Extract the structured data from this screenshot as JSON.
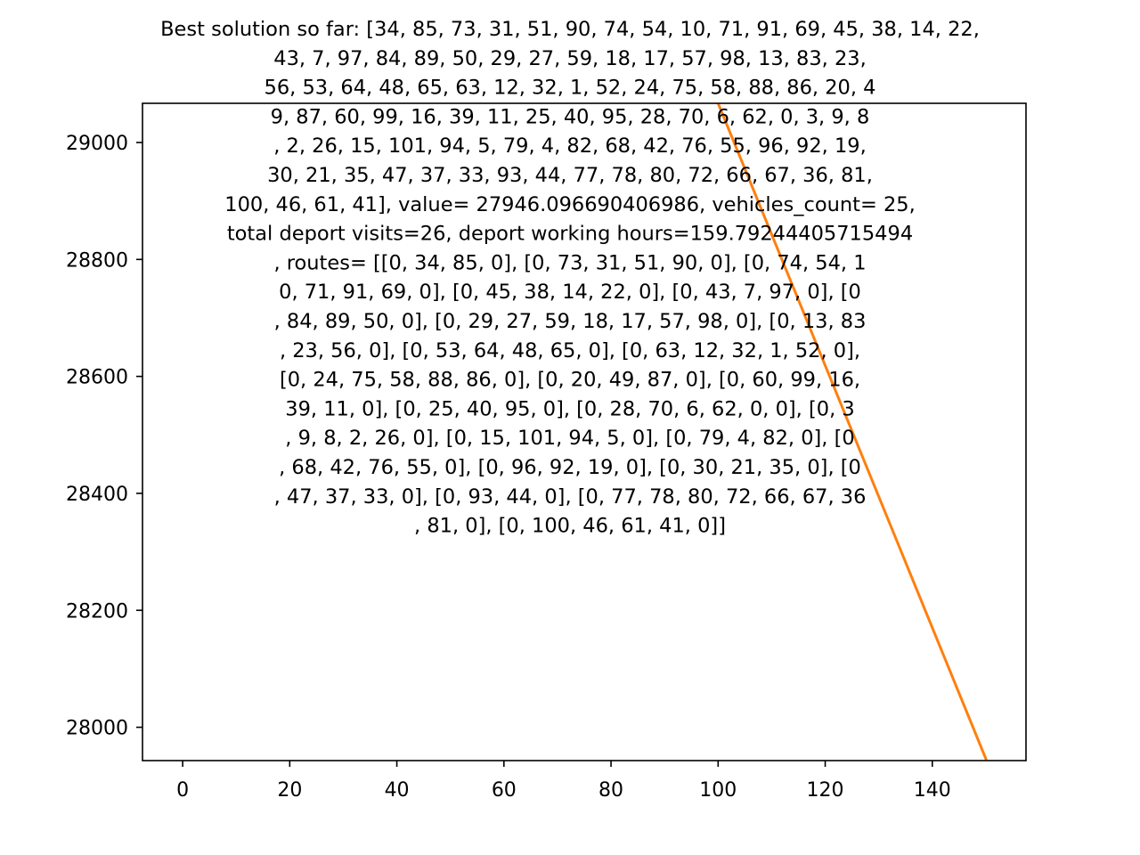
{
  "chart_data": {
    "type": "line",
    "title_lines": [
      "Best solution so far: [34, 85, 73, 31, 51, 90, 74, 54, 10, 71, 91, 69, 45, 38, 14, 22,",
      "43, 7, 97, 84, 89, 50, 29, 27, 59, 18, 17, 57, 98, 13, 83, 23,",
      "56, 53, 64, 48, 65, 63, 12, 32, 1, 52, 24, 75, 58, 88, 86, 20, 4",
      "9, 87, 60, 99, 16, 39, 11, 25, 40, 95, 28, 70, 6, 62, 0, 3, 9, 8",
      ", 2, 26, 15, 101, 94, 5, 79, 4, 82, 68, 42, 76, 55, 96, 92, 19,",
      "30, 21, 35, 47, 37, 33, 93, 44, 77, 78, 80, 72, 66, 67, 36, 81,",
      "100, 46, 61, 41], value= 27946.096690406986, vehicles_count= 25,",
      "total deport visits=26, deport working hours=159.79244405715494",
      ", routes= [[0, 34, 85, 0], [0, 73, 31, 51, 90, 0], [0, 74, 54, 1",
      "0, 71, 91, 69, 0], [0, 45, 38, 14, 22, 0], [0, 43, 7, 97, 0], [0",
      ", 84, 89, 50, 0], [0, 29, 27, 59, 18, 17, 57, 98, 0], [0, 13, 83",
      ", 23, 56, 0], [0, 53, 64, 48, 65, 0], [0, 63, 12, 32, 1, 52, 0],",
      "[0, 24, 75, 58, 88, 86, 0], [0, 20, 49, 87, 0], [0, 60, 99, 16,",
      "39, 11, 0], [0, 25, 40, 95, 0], [0, 28, 70, 6, 62, 0, 0], [0, 3",
      ", 9, 8, 2, 26, 0], [0, 15, 101, 94, 5, 0], [0, 79, 4, 82, 0], [0",
      ", 68, 42, 76, 55, 0], [0, 96, 92, 19, 0], [0, 30, 21, 35, 0], [0",
      ", 47, 37, 33, 0], [0, 93, 44, 0], [0, 77, 78, 80, 72, 66, 67, 36",
      ", 81, 0], [0, 100, 46, 61, 41, 0]]"
    ],
    "xlabel": "",
    "ylabel": "",
    "xlim": [
      -7.5,
      157.5
    ],
    "ylim": [
      27943,
      29067
    ],
    "xticks": [
      0,
      20,
      40,
      60,
      80,
      100,
      120,
      140
    ],
    "yticks": [
      28000,
      28200,
      28400,
      28600,
      28800,
      29000
    ],
    "grid": false,
    "series": [
      {
        "color": "#ff7f0e",
        "x": [
          100,
          150
        ],
        "y": [
          29067,
          27946.1
        ]
      }
    ]
  }
}
